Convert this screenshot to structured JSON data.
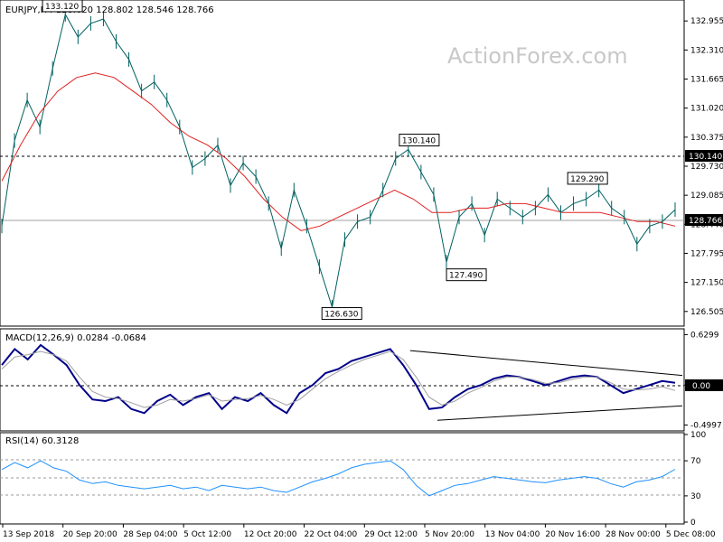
{
  "chart_data": [
    {
      "type": "line",
      "header": "EURJPY,H4  128.620 128.802 128.546 128.766",
      "watermark": "ActionForex.com",
      "ylim": [
        126.3,
        133.3
      ],
      "y_ticks": [
        "132.955",
        "132.310",
        "131.665",
        "131.020",
        "130.375",
        "129.730",
        "129.085",
        "128.440",
        "127.795",
        "127.150",
        "126.505"
      ],
      "x_ticks": [
        "13 Sep 2018",
        "20 Sep 20:00",
        "28 Sep 04:00",
        "5 Oct 12:00",
        "12 Oct 20:00",
        "22 Oct 04:00",
        "29 Oct 12:00",
        "5 Nov 20:00",
        "13 Nov 04:00",
        "20 Nov 16:00",
        "28 Nov 00:00",
        "5 Dec 08:00"
      ],
      "current_price": "128.766",
      "resistance": "130.140",
      "annotations": [
        {
          "text": "133.120",
          "value": 133.12,
          "at": 0.09
        },
        {
          "text": "130.140",
          "value": 130.14,
          "at": 0.62
        },
        {
          "text": "126.630",
          "value": 126.63,
          "at": 0.505
        },
        {
          "text": "127.490",
          "value": 127.49,
          "at": 0.69
        },
        {
          "text": "129.290",
          "value": 129.29,
          "at": 0.87
        }
      ],
      "series": [
        {
          "values": [
            128.4,
            130.3,
            131.2,
            130.6,
            131.9,
            133.1,
            132.6,
            132.9,
            133.0,
            132.5,
            132.1,
            131.4,
            131.6,
            131.2,
            130.6,
            129.7,
            129.9,
            130.2,
            129.3,
            129.8,
            129.5,
            128.9,
            127.9,
            129.2,
            128.4,
            127.5,
            126.6,
            128.1,
            128.5,
            128.6,
            129.2,
            129.9,
            130.1,
            129.6,
            129.1,
            127.6,
            128.6,
            128.9,
            128.2,
            129.0,
            128.8,
            128.6,
            128.8,
            129.1,
            128.7,
            128.9,
            129.0,
            129.2,
            128.8,
            128.6,
            128.0,
            128.4,
            128.5,
            128.766
          ]
        },
        {
          "color": "#e0201f",
          "values": [
            129.4,
            130.2,
            130.9,
            131.4,
            131.7,
            131.8,
            131.7,
            131.4,
            131.1,
            130.7,
            130.4,
            130.2,
            129.9,
            129.5,
            129.0,
            128.6,
            128.3,
            128.4,
            128.6,
            128.8,
            129.0,
            129.2,
            129.0,
            128.7,
            128.7,
            128.8,
            128.8,
            128.9,
            128.9,
            128.8,
            128.7,
            128.7,
            128.7,
            128.6,
            128.5,
            128.5,
            128.4
          ]
        }
      ]
    },
    {
      "type": "line",
      "header": "MACD(12,26,9) 0.0284 -0.0684",
      "ylim": [
        -0.55,
        0.68
      ],
      "y_ticks": [
        "0.6299",
        "0.00",
        "-0.4997"
      ],
      "current_value": "0.00",
      "series": [
        {
          "color": "#00008b",
          "values": [
            0.25,
            0.45,
            0.32,
            0.5,
            0.38,
            0.25,
            0.0,
            -0.18,
            -0.2,
            -0.15,
            -0.3,
            -0.35,
            -0.2,
            -0.12,
            -0.25,
            -0.15,
            -0.1,
            -0.3,
            -0.15,
            -0.2,
            -0.1,
            -0.25,
            -0.35,
            -0.1,
            0.0,
            0.15,
            0.2,
            0.3,
            0.35,
            0.4,
            0.45,
            0.25,
            0.0,
            -0.3,
            -0.28,
            -0.15,
            -0.05,
            0.0,
            0.08,
            0.12,
            0.1,
            0.05,
            0.0,
            0.05,
            0.1,
            0.12,
            0.1,
            0.0,
            -0.1,
            -0.05,
            0.0,
            0.05,
            0.0284
          ]
        },
        {
          "color": "#a0a0a0",
          "values": [
            0.2,
            0.35,
            0.38,
            0.42,
            0.38,
            0.3,
            0.1,
            -0.08,
            -0.15,
            -0.17,
            -0.22,
            -0.28,
            -0.25,
            -0.18,
            -0.2,
            -0.17,
            -0.12,
            -0.2,
            -0.18,
            -0.17,
            -0.13,
            -0.18,
            -0.25,
            -0.18,
            -0.05,
            0.08,
            0.17,
            0.25,
            0.32,
            0.37,
            0.42,
            0.32,
            0.1,
            -0.15,
            -0.25,
            -0.2,
            -0.1,
            -0.03,
            0.05,
            0.1,
            0.1,
            0.07,
            0.02,
            0.03,
            0.07,
            0.1,
            0.1,
            0.03,
            -0.05,
            -0.06,
            -0.05,
            -0.02,
            -0.0684
          ]
        }
      ],
      "trendlines": [
        {
          "x": [
            0.6,
            1.0
          ],
          "y": [
            0.43,
            0.12
          ]
        },
        {
          "x": [
            0.64,
            1.0
          ],
          "y": [
            -0.44,
            -0.26
          ]
        }
      ]
    },
    {
      "type": "line",
      "header": "RSI(14) 60.3128",
      "ylim": [
        0,
        100
      ],
      "y_ticks": [
        "100",
        "70",
        "30",
        "0"
      ],
      "levels": [
        70,
        50,
        30
      ],
      "series": [
        {
          "color": "#1e90ff",
          "values": [
            60,
            68,
            62,
            70,
            62,
            58,
            48,
            44,
            46,
            42,
            40,
            38,
            40,
            42,
            38,
            40,
            36,
            42,
            40,
            38,
            40,
            36,
            34,
            40,
            46,
            50,
            55,
            62,
            66,
            68,
            70,
            60,
            42,
            30,
            36,
            42,
            44,
            48,
            52,
            50,
            48,
            46,
            45,
            48,
            50,
            52,
            50,
            44,
            40,
            46,
            48,
            52,
            60.3
          ]
        }
      ]
    }
  ]
}
